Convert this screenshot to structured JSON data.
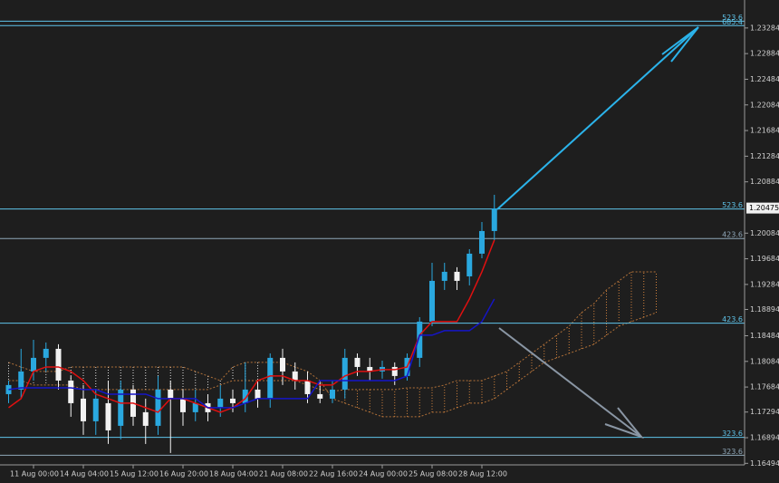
{
  "chart_data": {
    "type": "candlestick",
    "categories": [
      null,
      null,
      "11 Aug 00:00",
      null,
      null,
      null,
      "14 Aug 04:00",
      null,
      null,
      null,
      "15 Aug 12:00",
      null,
      null,
      null,
      "16 Aug 20:00",
      null,
      null,
      null,
      "18 Aug 04:00",
      null,
      null,
      null,
      "21 Aug 08:00",
      null,
      null,
      null,
      "22 Aug 16:00",
      null,
      null,
      null,
      "24 Aug 00:00",
      null,
      null,
      null,
      "25 Aug 08:00",
      null,
      null,
      null,
      "28 Aug 12:00",
      null,
      null,
      null,
      null,
      null,
      null,
      null,
      null,
      null,
      null,
      null,
      null,
      null,
      null
    ],
    "open": [
      1.17573,
      1.17644,
      1.17927,
      1.18139,
      1.1828,
      1.17785,
      1.17503,
      1.1715,
      1.17432,
      1.17079,
      1.17644,
      1.17291,
      1.17079,
      1.17644,
      1.17503,
      1.17291,
      1.17432,
      1.17362,
      1.17503,
      1.17432,
      1.17644,
      1.17503,
      1.18139,
      1.17927,
      1.17785,
      1.17573,
      1.17503,
      1.17644,
      1.18139,
      1.17997,
      1.17927,
      1.17997,
      1.17856,
      1.18139,
      1.18704,
      1.1934,
      1.19481,
      1.1941,
      1.19764,
      1.20117,
      null,
      null,
      null,
      null,
      null,
      null,
      null,
      null,
      null,
      null,
      null,
      null,
      null
    ],
    "high": [
      1.17785,
      1.1828,
      1.18421,
      1.18379,
      1.18351,
      1.17856,
      1.17715,
      1.17644,
      1.17785,
      1.17785,
      1.17715,
      1.17503,
      1.17856,
      1.17785,
      1.17644,
      1.17644,
      1.17573,
      1.17715,
      1.17644,
      1.18068,
      1.17785,
      1.18209,
      1.1828,
      1.18068,
      1.17927,
      1.17785,
      1.17785,
      1.1828,
      1.18209,
      1.18139,
      1.18096,
      1.18068,
      1.18209,
      1.18774,
      1.19622,
      1.19622,
      1.19552,
      1.19834,
      1.20258,
      1.20682,
      null,
      null,
      null,
      null,
      null,
      null,
      null,
      null,
      null,
      null,
      null,
      null,
      null
    ],
    "low": [
      1.17432,
      1.17503,
      1.17785,
      1.17927,
      1.17644,
      1.1722,
      1.16938,
      1.16938,
      1.16796,
      1.16867,
      1.17079,
      1.16796,
      1.16938,
      1.16655,
      1.17079,
      1.1715,
      1.1715,
      1.1722,
      1.17291,
      1.17291,
      1.17362,
      1.17362,
      1.17715,
      1.17644,
      1.17432,
      1.17432,
      1.17432,
      1.17503,
      1.17856,
      1.17785,
      1.17814,
      1.17715,
      1.17785,
      1.17997,
      1.18633,
      1.19198,
      1.19198,
      1.19269,
      1.19693,
      1.19976,
      null,
      null,
      null,
      null,
      null,
      null,
      null,
      null,
      null,
      null,
      null,
      null,
      null
    ],
    "close": [
      1.17715,
      1.17927,
      1.18139,
      1.1828,
      1.17785,
      1.17432,
      1.1715,
      1.17503,
      1.17008,
      1.17644,
      1.1722,
      1.17079,
      1.17644,
      1.17503,
      1.17291,
      1.17432,
      1.17291,
      1.17503,
      1.17432,
      1.17644,
      1.17503,
      1.18139,
      1.17927,
      1.17785,
      1.17573,
      1.17503,
      1.17644,
      1.18139,
      1.17997,
      1.17927,
      1.17997,
      1.17856,
      1.18139,
      1.18704,
      1.1934,
      1.19481,
      1.1934,
      1.19764,
      1.20117,
      1.2047,
      null,
      null,
      null,
      null,
      null,
      null,
      null,
      null,
      null,
      null,
      null,
      null,
      null
    ],
    "up_color": "#2aa8df",
    "down_color": "#f2f2f2",
    "lines": [
      {
        "color": "#e01010",
        "values": [
          1.17362,
          1.17503,
          1.17927,
          1.17997,
          1.17997,
          1.17927,
          1.17785,
          1.17573,
          1.17503,
          1.17432,
          1.17432,
          1.17362,
          1.17291,
          1.17503,
          1.17503,
          1.17432,
          1.17362,
          1.17291,
          1.17362,
          1.17503,
          1.17785,
          1.17856,
          1.17856,
          1.17785,
          1.17785,
          1.17715,
          1.17715,
          1.17856,
          1.17927,
          1.17927,
          1.17955,
          1.17955,
          1.17997,
          1.18492,
          1.18704,
          1.18704,
          1.18704,
          1.19057,
          1.19481,
          1.19976,
          null,
          null,
          null,
          null,
          null,
          null,
          null,
          null,
          null,
          null,
          null,
          null,
          null
        ]
      },
      {
        "color": "#1515c8",
        "values": [
          1.17644,
          1.17672,
          1.17672,
          1.17672,
          1.17672,
          1.17672,
          1.17644,
          1.17644,
          1.17573,
          1.17573,
          1.17573,
          1.17573,
          1.17503,
          1.17503,
          1.17503,
          1.17503,
          1.17362,
          1.17362,
          1.17362,
          1.17432,
          1.17503,
          1.17503,
          1.17503,
          1.17503,
          1.17503,
          1.17785,
          1.17785,
          1.17785,
          1.17785,
          1.17785,
          1.17785,
          1.17785,
          1.17856,
          1.18492,
          1.18492,
          1.18563,
          1.18563,
          1.18563,
          1.18704,
          1.19057,
          null,
          null,
          null,
          null,
          null,
          null,
          null,
          null,
          null,
          null,
          null,
          null,
          null
        ]
      }
    ],
    "cloud": {
      "span_a": [
        1.18068,
        1.17997,
        1.17927,
        1.17927,
        1.17927,
        1.17997,
        1.17997,
        1.17997,
        1.17997,
        1.17997,
        1.17997,
        1.17997,
        1.17997,
        1.17997,
        1.17997,
        1.17927,
        1.17856,
        1.17785,
        1.17997,
        1.18068,
        1.18068,
        1.18068,
        1.18068,
        1.17997,
        1.17927,
        1.17785,
        1.17503,
        1.17432,
        1.17362,
        1.17291,
        1.1722,
        1.1722,
        1.1722,
        1.1722,
        1.17291,
        1.17291,
        1.17362,
        1.17432,
        1.17432,
        1.17503,
        1.17644,
        1.17785,
        1.17927,
        1.18068,
        1.18139,
        1.18209,
        1.1828,
        1.18351,
        1.18492,
        1.18633,
        1.18704,
        1.18774,
        1.18845
      ],
      "span_b": [
        1.17785,
        1.17785,
        1.17715,
        1.17715,
        1.17715,
        1.17715,
        1.17644,
        1.17644,
        1.17644,
        1.17644,
        1.17644,
        1.17644,
        1.17644,
        1.17644,
        1.17644,
        1.17644,
        1.17644,
        1.17715,
        1.17785,
        1.17785,
        1.17785,
        1.17785,
        1.17785,
        1.17785,
        1.17715,
        1.17644,
        1.17616,
        1.17644,
        1.17644,
        1.17644,
        1.17644,
        1.17644,
        1.17672,
        1.17672,
        1.17672,
        1.17715,
        1.17785,
        1.17785,
        1.17785,
        1.17856,
        1.17927,
        1.18068,
        1.18209,
        1.18351,
        1.18492,
        1.18633,
        1.18845,
        1.18986,
        1.19198,
        1.1934,
        1.19481,
        1.19481,
        1.19481
      ],
      "up_color": "#e0e0e0",
      "down_color": "#d4843e"
    },
    "levels": [
      {
        "label": "523.6",
        "value": 1.2339,
        "color": "#5fc4ea"
      },
      {
        "label": "685.4",
        "value": 1.2332,
        "color": "#5fc4ea"
      },
      {
        "label": "523.6",
        "value": 1.2046,
        "color": "#5fc4ea"
      },
      {
        "label": "423.6",
        "value": 1.2,
        "color": "#8fa7b8"
      },
      {
        "label": "423.6",
        "value": 1.1868,
        "color": "#5fc4ea"
      },
      {
        "label": "323.6",
        "value": 1.169,
        "color": "#5fc4ea"
      },
      {
        "label": "323.6",
        "value": 1.1662,
        "color": "#8fa7b8"
      }
    ],
    "last_price": 1.20475,
    "ylim": [
      1.1647,
      1.2372
    ],
    "yticks": [
      1.23284,
      1.22884,
      1.22484,
      1.22084,
      1.21684,
      1.21284,
      1.20884,
      1.20084,
      1.19684,
      1.19284,
      1.18894,
      1.18484,
      1.18084,
      1.17684,
      1.17294,
      1.16894,
      1.16494
    ]
  }
}
